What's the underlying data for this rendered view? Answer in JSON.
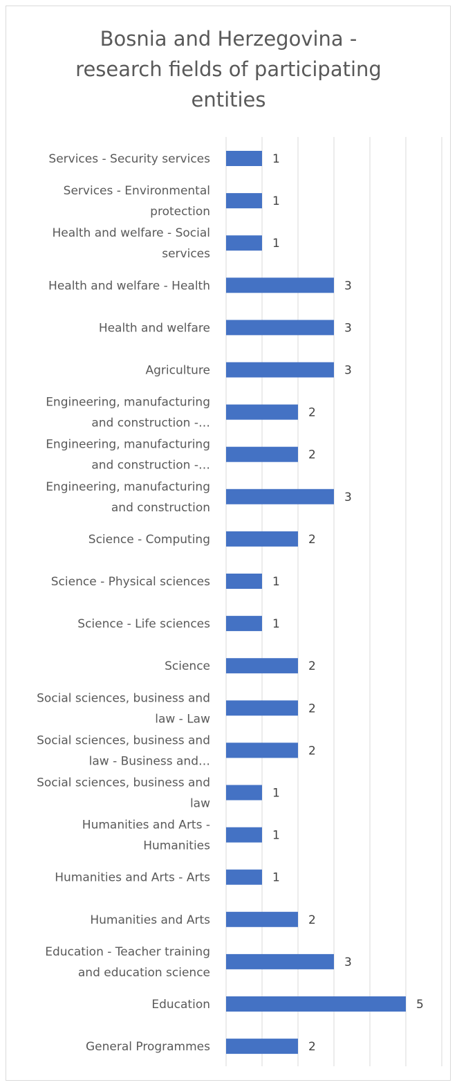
{
  "chart_data": {
    "type": "bar",
    "orientation": "horizontal",
    "title_lines": [
      "Bosnia and Herzegovina -",
      "research fields of participating",
      "entities"
    ],
    "xlabel": "",
    "ylabel": "",
    "xlim": [
      0,
      6
    ],
    "grid": true,
    "legend": "none",
    "bar_color": "#4472c4",
    "categories": [
      [
        "Services - Security services"
      ],
      [
        "Services - Environmental",
        "protection"
      ],
      [
        "Health and welfare - Social",
        "services"
      ],
      [
        "Health and welfare - Health"
      ],
      [
        "Health and welfare"
      ],
      [
        "Agriculture"
      ],
      [
        "Engineering, manufacturing",
        "and construction -…"
      ],
      [
        "Engineering, manufacturing",
        "and construction -…"
      ],
      [
        "Engineering, manufacturing",
        "and construction"
      ],
      [
        "Science - Computing"
      ],
      [
        "Science - Physical sciences"
      ],
      [
        "Science - Life sciences"
      ],
      [
        "Science"
      ],
      [
        "Social sciences, business and",
        "law - Law"
      ],
      [
        "Social sciences, business and",
        "law - Business and…"
      ],
      [
        "Social sciences, business and",
        "law"
      ],
      [
        "Humanities and Arts -",
        "Humanities"
      ],
      [
        "Humanities and Arts - Arts"
      ],
      [
        "Humanities and Arts"
      ],
      [
        "Education - Teacher training",
        "and education science"
      ],
      [
        "Education"
      ],
      [
        "General Programmes"
      ]
    ],
    "values": [
      1,
      1,
      1,
      3,
      3,
      3,
      2,
      2,
      3,
      2,
      1,
      1,
      2,
      2,
      2,
      1,
      1,
      1,
      2,
      3,
      5,
      2
    ]
  }
}
